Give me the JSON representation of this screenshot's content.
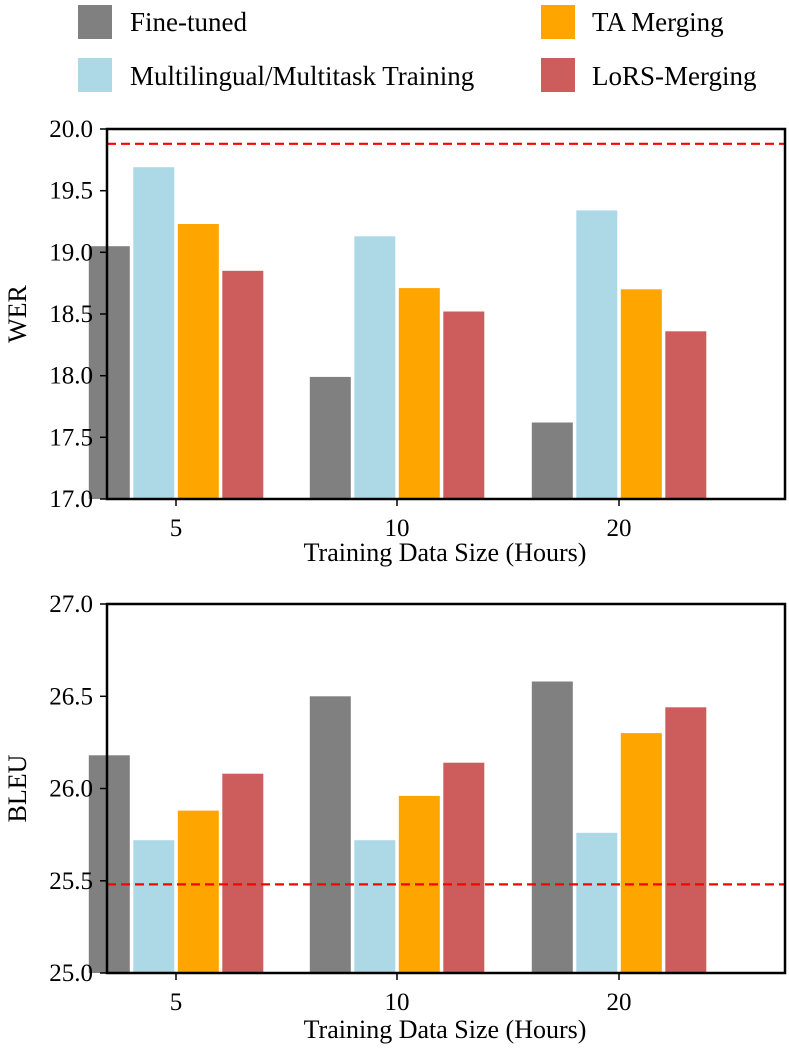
{
  "legend": {
    "position": "top",
    "items": [
      {
        "name": "Fine-tuned",
        "color": "#808080"
      },
      {
        "name": "TA Merging",
        "color": "#FFA500"
      },
      {
        "name": "Multilingual/Multitask Training",
        "color": "#ADD8E6"
      },
      {
        "name": "LoRS-Merging",
        "color": "#CD5C5C"
      }
    ]
  },
  "chart_data": [
    {
      "type": "bar",
      "title": "",
      "xlabel": "Training Data Size (Hours)",
      "ylabel": "WER",
      "categories": [
        "5",
        "10",
        "20"
      ],
      "ylim": [
        17.0,
        20.0
      ],
      "yticks": [
        "17.0",
        "17.5",
        "18.0",
        "18.5",
        "19.0",
        "19.5",
        "20.0"
      ],
      "reference_line": {
        "value": 19.88,
        "color": "#FF0000",
        "style": "dashed"
      },
      "series": [
        {
          "name": "Fine-tuned",
          "color": "#808080",
          "values": [
            19.05,
            17.99,
            17.62
          ]
        },
        {
          "name": "Multilingual/Multitask Training",
          "color": "#ADD8E6",
          "values": [
            19.69,
            19.13,
            19.34
          ]
        },
        {
          "name": "TA Merging",
          "color": "#FFA500",
          "values": [
            19.23,
            18.71,
            18.7
          ]
        },
        {
          "name": "LoRS-Merging",
          "color": "#CD5C5C",
          "values": [
            18.85,
            18.52,
            18.36
          ]
        }
      ]
    },
    {
      "type": "bar",
      "title": "",
      "xlabel": "Training Data Size (Hours)",
      "ylabel": "BLEU",
      "categories": [
        "5",
        "10",
        "20"
      ],
      "ylim": [
        25.0,
        27.0
      ],
      "yticks": [
        "25.0",
        "25.5",
        "26.0",
        "26.5",
        "27.0"
      ],
      "reference_line": {
        "value": 25.48,
        "color": "#FF0000",
        "style": "dashed"
      },
      "series": [
        {
          "name": "Fine-tuned",
          "color": "#808080",
          "values": [
            26.18,
            26.5,
            26.58
          ]
        },
        {
          "name": "Multilingual/Multitask Training",
          "color": "#ADD8E6",
          "values": [
            25.72,
            25.72,
            25.76
          ]
        },
        {
          "name": "TA Merging",
          "color": "#FFA500",
          "values": [
            25.88,
            25.96,
            26.3
          ]
        },
        {
          "name": "LoRS-Merging",
          "color": "#CD5C5C",
          "values": [
            26.08,
            26.14,
            26.44
          ]
        }
      ]
    }
  ]
}
